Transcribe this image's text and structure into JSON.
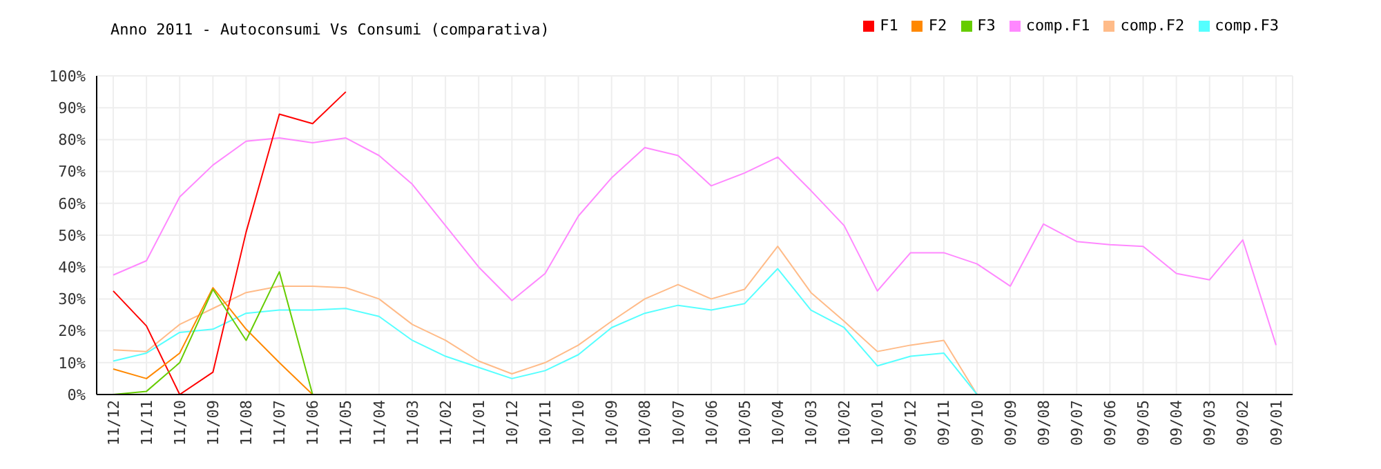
{
  "chart_data": {
    "type": "line",
    "title": "Anno 2011 - Autoconsumi Vs Consumi (comparativa)",
    "categories": [
      "11/12",
      "11/11",
      "11/10",
      "11/09",
      "11/08",
      "11/07",
      "11/06",
      "11/05",
      "11/04",
      "11/03",
      "11/02",
      "11/01",
      "10/12",
      "10/11",
      "10/10",
      "10/09",
      "10/08",
      "10/07",
      "10/06",
      "10/05",
      "10/04",
      "10/03",
      "10/02",
      "10/01",
      "09/12",
      "09/11",
      "09/10",
      "09/09",
      "09/08",
      "09/07",
      "09/06",
      "09/05",
      "09/04",
      "09/03",
      "09/02",
      "09/01"
    ],
    "series": [
      {
        "name": "comp.F1",
        "color": "#ff88ff",
        "values": [
          37.5,
          42,
          62,
          72,
          79.5,
          80.5,
          79,
          80.5,
          75,
          66,
          53,
          40,
          29.5,
          38,
          56,
          68,
          77.5,
          75,
          65.5,
          69.5,
          74.5,
          64,
          53,
          32.5,
          44.5,
          44.5,
          41,
          34,
          53.5,
          48,
          47,
          46.5,
          38,
          36,
          48.5,
          15.5
        ]
      },
      {
        "name": "comp.F2",
        "color": "#ffbb88",
        "values": [
          14,
          13.5,
          22,
          27,
          32,
          34,
          34,
          33.5,
          30,
          22,
          17,
          10.5,
          6.5,
          10,
          15.5,
          23,
          30,
          34.5,
          30,
          33,
          46.5,
          32,
          23,
          13.5,
          15.5,
          17,
          0,
          null,
          null,
          null,
          null,
          null,
          null,
          null,
          null,
          null
        ]
      },
      {
        "name": "comp.F3",
        "color": "#55ffff",
        "values": [
          10.5,
          13,
          19.5,
          20.5,
          25.5,
          26.5,
          26.5,
          27,
          24.5,
          17,
          12,
          8.5,
          5,
          7.5,
          12.5,
          21,
          25.5,
          28,
          26.5,
          28.5,
          39.5,
          26.5,
          21,
          9,
          12,
          13,
          0,
          null,
          null,
          null,
          null,
          null,
          null,
          null,
          null,
          null
        ]
      },
      {
        "name": "F1",
        "color": "#ff0000",
        "values": [
          32.5,
          21.5,
          0,
          7,
          51,
          88,
          85,
          95,
          null,
          null,
          null,
          null,
          null,
          null,
          null,
          null,
          null,
          null,
          null,
          null,
          null,
          null,
          null,
          null,
          null,
          null,
          null,
          null,
          null,
          null,
          null,
          null,
          null,
          null,
          null,
          null
        ]
      },
      {
        "name": "F2",
        "color": "#ff8800",
        "values": [
          8,
          5,
          13,
          33.5,
          20.5,
          10,
          0,
          null,
          null,
          null,
          null,
          null,
          null,
          null,
          null,
          null,
          null,
          null,
          null,
          null,
          null,
          null,
          null,
          null,
          null,
          null,
          null,
          null,
          null,
          null,
          null,
          null,
          null,
          null,
          null,
          null
        ]
      },
      {
        "name": "F3",
        "color": "#66cc00",
        "values": [
          0,
          1,
          10,
          33,
          17,
          38.5,
          0,
          null,
          null,
          null,
          null,
          null,
          null,
          null,
          null,
          null,
          null,
          null,
          null,
          null,
          null,
          null,
          null,
          null,
          null,
          null,
          null,
          null,
          null,
          null,
          null,
          null,
          null,
          null,
          null,
          null
        ]
      }
    ],
    "ylim": [
      0,
      100
    ],
    "yticks": [
      {
        "value": 0,
        "label": "0%"
      },
      {
        "value": 10,
        "label": "10%"
      },
      {
        "value": 20,
        "label": "20%"
      },
      {
        "value": 30,
        "label": "30%"
      },
      {
        "value": 40,
        "label": "40%"
      },
      {
        "value": 50,
        "label": "50%"
      },
      {
        "value": 60,
        "label": "60%"
      },
      {
        "value": 70,
        "label": "70%"
      },
      {
        "value": 80,
        "label": "80%"
      },
      {
        "value": 90,
        "label": "90%"
      },
      {
        "value": 100,
        "label": "100%"
      }
    ],
    "grid": true,
    "legend": "top right",
    "marker": "none",
    "line_style": "solid"
  }
}
